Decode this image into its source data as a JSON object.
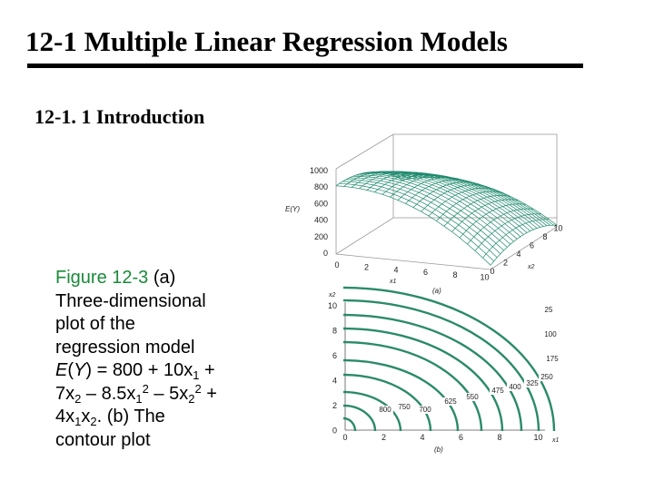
{
  "slide": {
    "title": "12-1 Multiple Linear Regression Models",
    "subtitle": "12-1. 1 Introduction"
  },
  "caption": {
    "figure_label": "Figure 12-3",
    "line1_rest": " (a)",
    "line2": "Three-dimensional",
    "line3": "plot of the",
    "line4": "regression model",
    "eq_E": "E",
    "eq_Y": "Y",
    "eq_a": ") = 800 + 10x",
    "sub1": "1",
    "eq_b": " +",
    "eq_c": "7x",
    "sub2": "2",
    "eq_d": " – 8.5x",
    "sub3": "1",
    "sup1": "2",
    "eq_e": " – 5x",
    "sub4": "2",
    "sup2": "2",
    "eq_f": " +",
    "eq_g": "4x",
    "sub5": "1",
    "eq_h": "x",
    "sub6": "2",
    "eq_i": ". (b) The",
    "line_last": "contour plot"
  },
  "surface_plot": {
    "panel_label": "(a)",
    "z_axis_label": "E(Y)",
    "z_ticks": [
      "1000",
      "800",
      "600",
      "400",
      "200",
      "0"
    ],
    "x1_ticks": [
      "0",
      "2",
      "4",
      "6",
      "8",
      "10"
    ],
    "x1_label": "x1",
    "x2_ticks": [
      "0",
      "2",
      "4",
      "6",
      "8",
      "10"
    ],
    "x2_label": "x2",
    "surface_color": "#1f8a6e"
  },
  "contour_plot": {
    "panel_label": "(b)",
    "y_axis_label": "x2",
    "y_ticks": [
      "10",
      "8",
      "6",
      "4",
      "2",
      "0"
    ],
    "x_ticks": [
      "0",
      "2",
      "4",
      "6",
      "8",
      "10"
    ],
    "x_axis_label": "x1",
    "contour_labels": [
      "25",
      "100",
      "175",
      "250",
      "325",
      "400",
      "475",
      "550",
      "625",
      "700",
      "750",
      "800"
    ],
    "line_color": "#2a8a6a"
  }
}
